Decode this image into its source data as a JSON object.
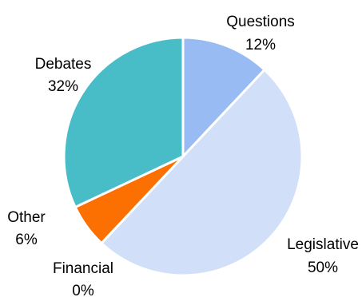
{
  "chart_data": {
    "type": "pie",
    "start_angle_deg": 0,
    "direction": "clockwise",
    "slices": [
      {
        "label": "Questions",
        "value": 12,
        "value_label": "12%",
        "color": "#99bbf4"
      },
      {
        "label": "Legislative",
        "value": 50,
        "value_label": "50%",
        "color": "#d1e0f8"
      },
      {
        "label": "Financial",
        "value": 0,
        "value_label": "0%",
        "color": "#2f5597"
      },
      {
        "label": "Other",
        "value": 6,
        "value_label": "6%",
        "color": "#fb7000"
      },
      {
        "label": "Debates",
        "value": 32,
        "value_label": "32%",
        "color": "#48bcc7"
      }
    ]
  }
}
